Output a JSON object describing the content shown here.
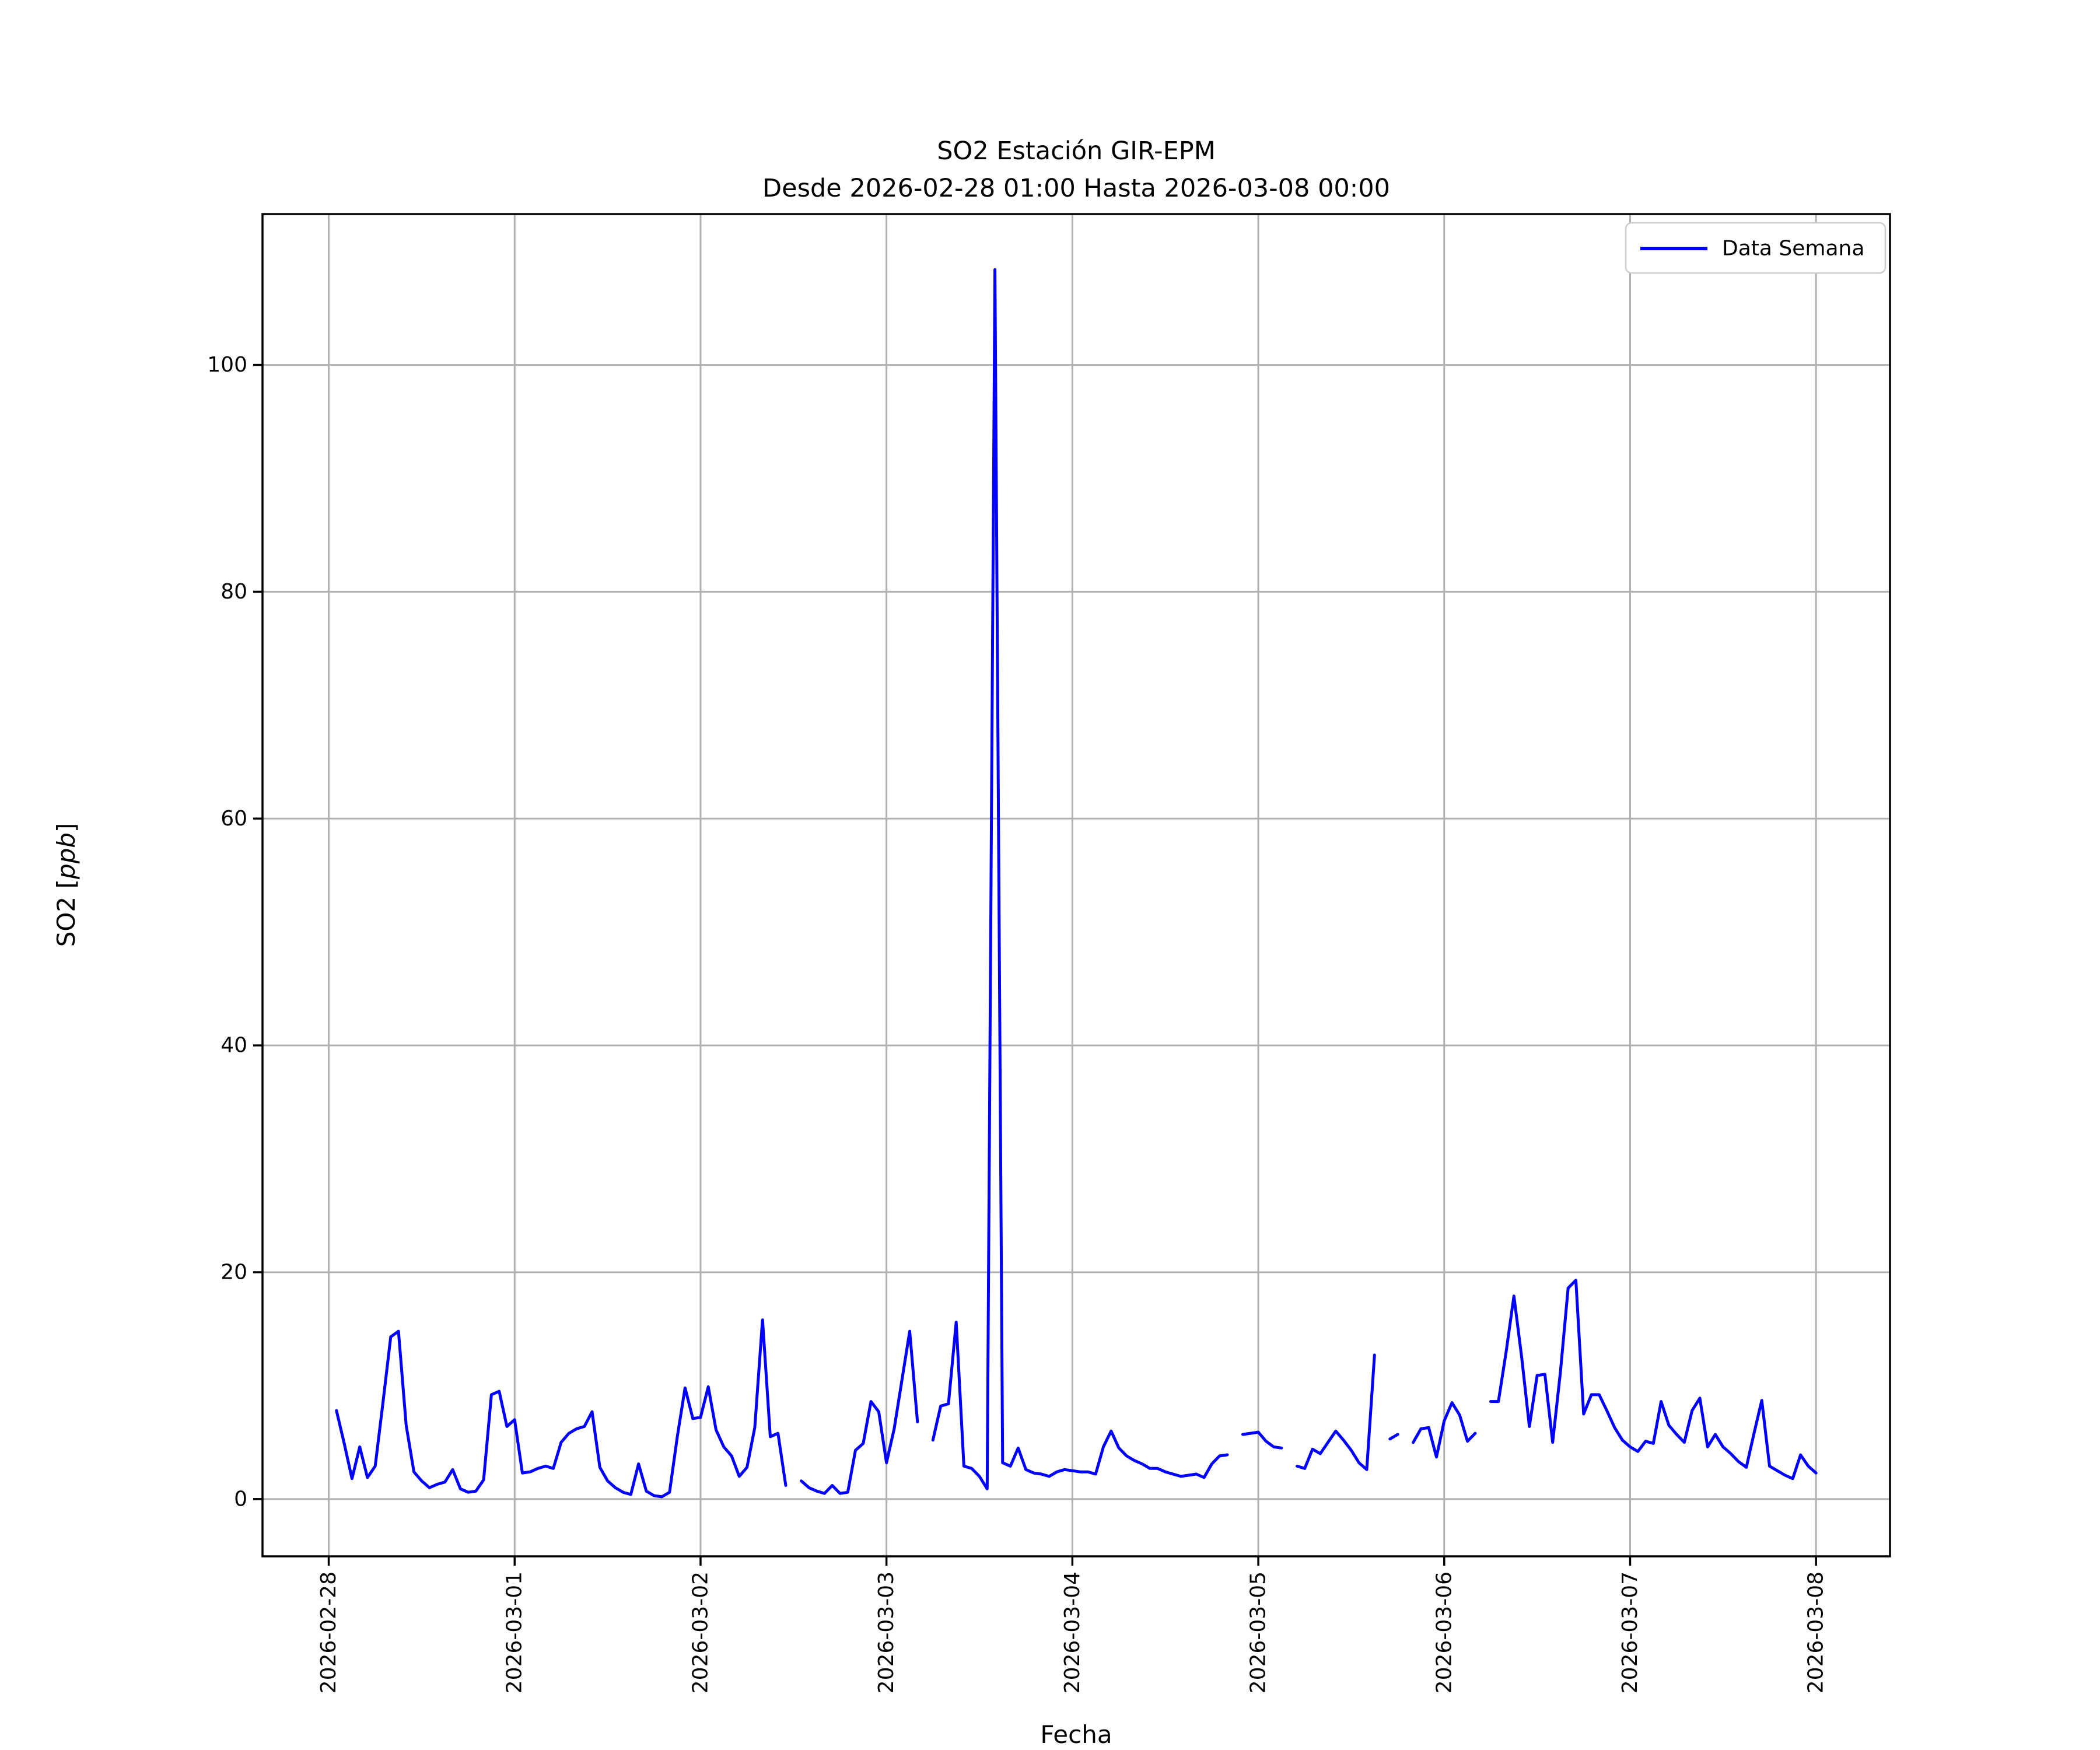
{
  "chart_data": {
    "type": "line",
    "title": "SO2 Estación GIR-EPM",
    "subtitle": "Desde 2026-02-28 01:00 Hasta 2026-03-08 00:00",
    "xlabel": "Fecha",
    "ylabel": "SO2 [ppb]",
    "ylabel_parts": {
      "prefix": "SO2 [",
      "italic": "ppb",
      "suffix": "]"
    },
    "grid": true,
    "grid_color": "#b0b0b0",
    "background_color": "#ffffff",
    "line_color": "#0000ff",
    "legend": {
      "position": "upper right",
      "entries": [
        {
          "label": "Data Semana",
          "color": "#0000ff"
        }
      ]
    },
    "x_axis": {
      "epoch": "2026-02-28 00:00",
      "tick_hour_offsets": [
        0,
        24,
        48,
        72,
        96,
        120,
        144,
        168,
        192
      ],
      "tick_labels": [
        "2026-02-28",
        "2026-03-01",
        "2026-03-02",
        "2026-03-03",
        "2026-03-04",
        "2026-03-05",
        "2026-03-06",
        "2026-03-07",
        "2026-03-08"
      ],
      "lim_hours": [
        -8.55,
        201.55
      ]
    },
    "y_axis": {
      "ticks": [
        0,
        20,
        40,
        60,
        80,
        100
      ],
      "lim": [
        -5.05,
        113.3
      ]
    },
    "series": [
      {
        "name": "Data Semana",
        "unit": "ppb",
        "start": "2026-02-28 01:00",
        "end": "2026-03-08 00:00",
        "start_hour_offset": 1,
        "interval_hours": 1,
        "values": [
          7.8,
          4.9,
          1.8,
          4.6,
          1.9,
          2.9,
          8.5,
          14.3,
          14.8,
          6.5,
          2.4,
          1.6,
          1.0,
          1.3,
          1.5,
          2.6,
          0.9,
          0.6,
          0.7,
          1.7,
          9.2,
          9.5,
          6.4,
          7.0,
          2.3,
          2.4,
          2.7,
          2.9,
          2.7,
          5.0,
          5.8,
          6.2,
          6.4,
          7.7,
          2.8,
          1.6,
          1.0,
          0.6,
          0.4,
          3.1,
          0.7,
          0.3,
          0.2,
          0.6,
          5.5,
          9.8,
          7.1,
          7.2,
          9.9,
          6.1,
          4.6,
          3.8,
          2.0,
          2.8,
          6.3,
          15.8,
          5.5,
          5.8,
          1.2,
          null,
          1.6,
          1.0,
          0.7,
          0.5,
          1.2,
          0.5,
          0.6,
          4.3,
          4.9,
          8.6,
          7.7,
          3.2,
          6.2,
          10.5,
          14.8,
          6.8,
          null,
          5.2,
          8.2,
          8.4,
          15.6,
          2.9,
          2.7,
          2.0,
          0.9,
          108.4,
          3.2,
          2.9,
          4.5,
          2.6,
          2.3,
          2.2,
          2.0,
          2.4,
          2.6,
          2.5,
          2.4,
          2.4,
          2.2,
          4.6,
          6.0,
          4.5,
          3.8,
          3.4,
          3.1,
          2.7,
          2.7,
          2.4,
          2.2,
          2.0,
          2.1,
          2.2,
          1.9,
          3.1,
          3.8,
          3.9,
          null,
          5.7,
          5.8,
          5.9,
          5.1,
          4.6,
          4.5,
          null,
          2.9,
          2.7,
          4.4,
          4.0,
          5.0,
          6.0,
          5.2,
          4.3,
          3.2,
          2.6,
          12.7,
          null,
          5.3,
          5.7,
          null,
          5.0,
          6.2,
          6.3,
          3.7,
          6.9,
          8.5,
          7.4,
          5.1,
          5.8,
          null,
          8.6,
          8.6,
          13.0,
          17.9,
          12.5,
          6.4,
          10.9,
          11.0,
          5.0,
          11.2,
          18.6,
          19.3,
          7.5,
          9.2,
          9.2,
          7.8,
          6.3,
          5.2,
          4.6,
          4.2,
          5.1,
          4.9,
          8.6,
          6.5,
          5.7,
          5.0,
          7.8,
          8.9,
          4.6,
          5.7,
          4.6,
          4.0,
          3.3,
          2.8,
          5.8,
          8.7,
          2.9,
          2.5,
          2.1,
          1.8,
          3.9,
          2.9,
          2.3
        ]
      }
    ]
  }
}
